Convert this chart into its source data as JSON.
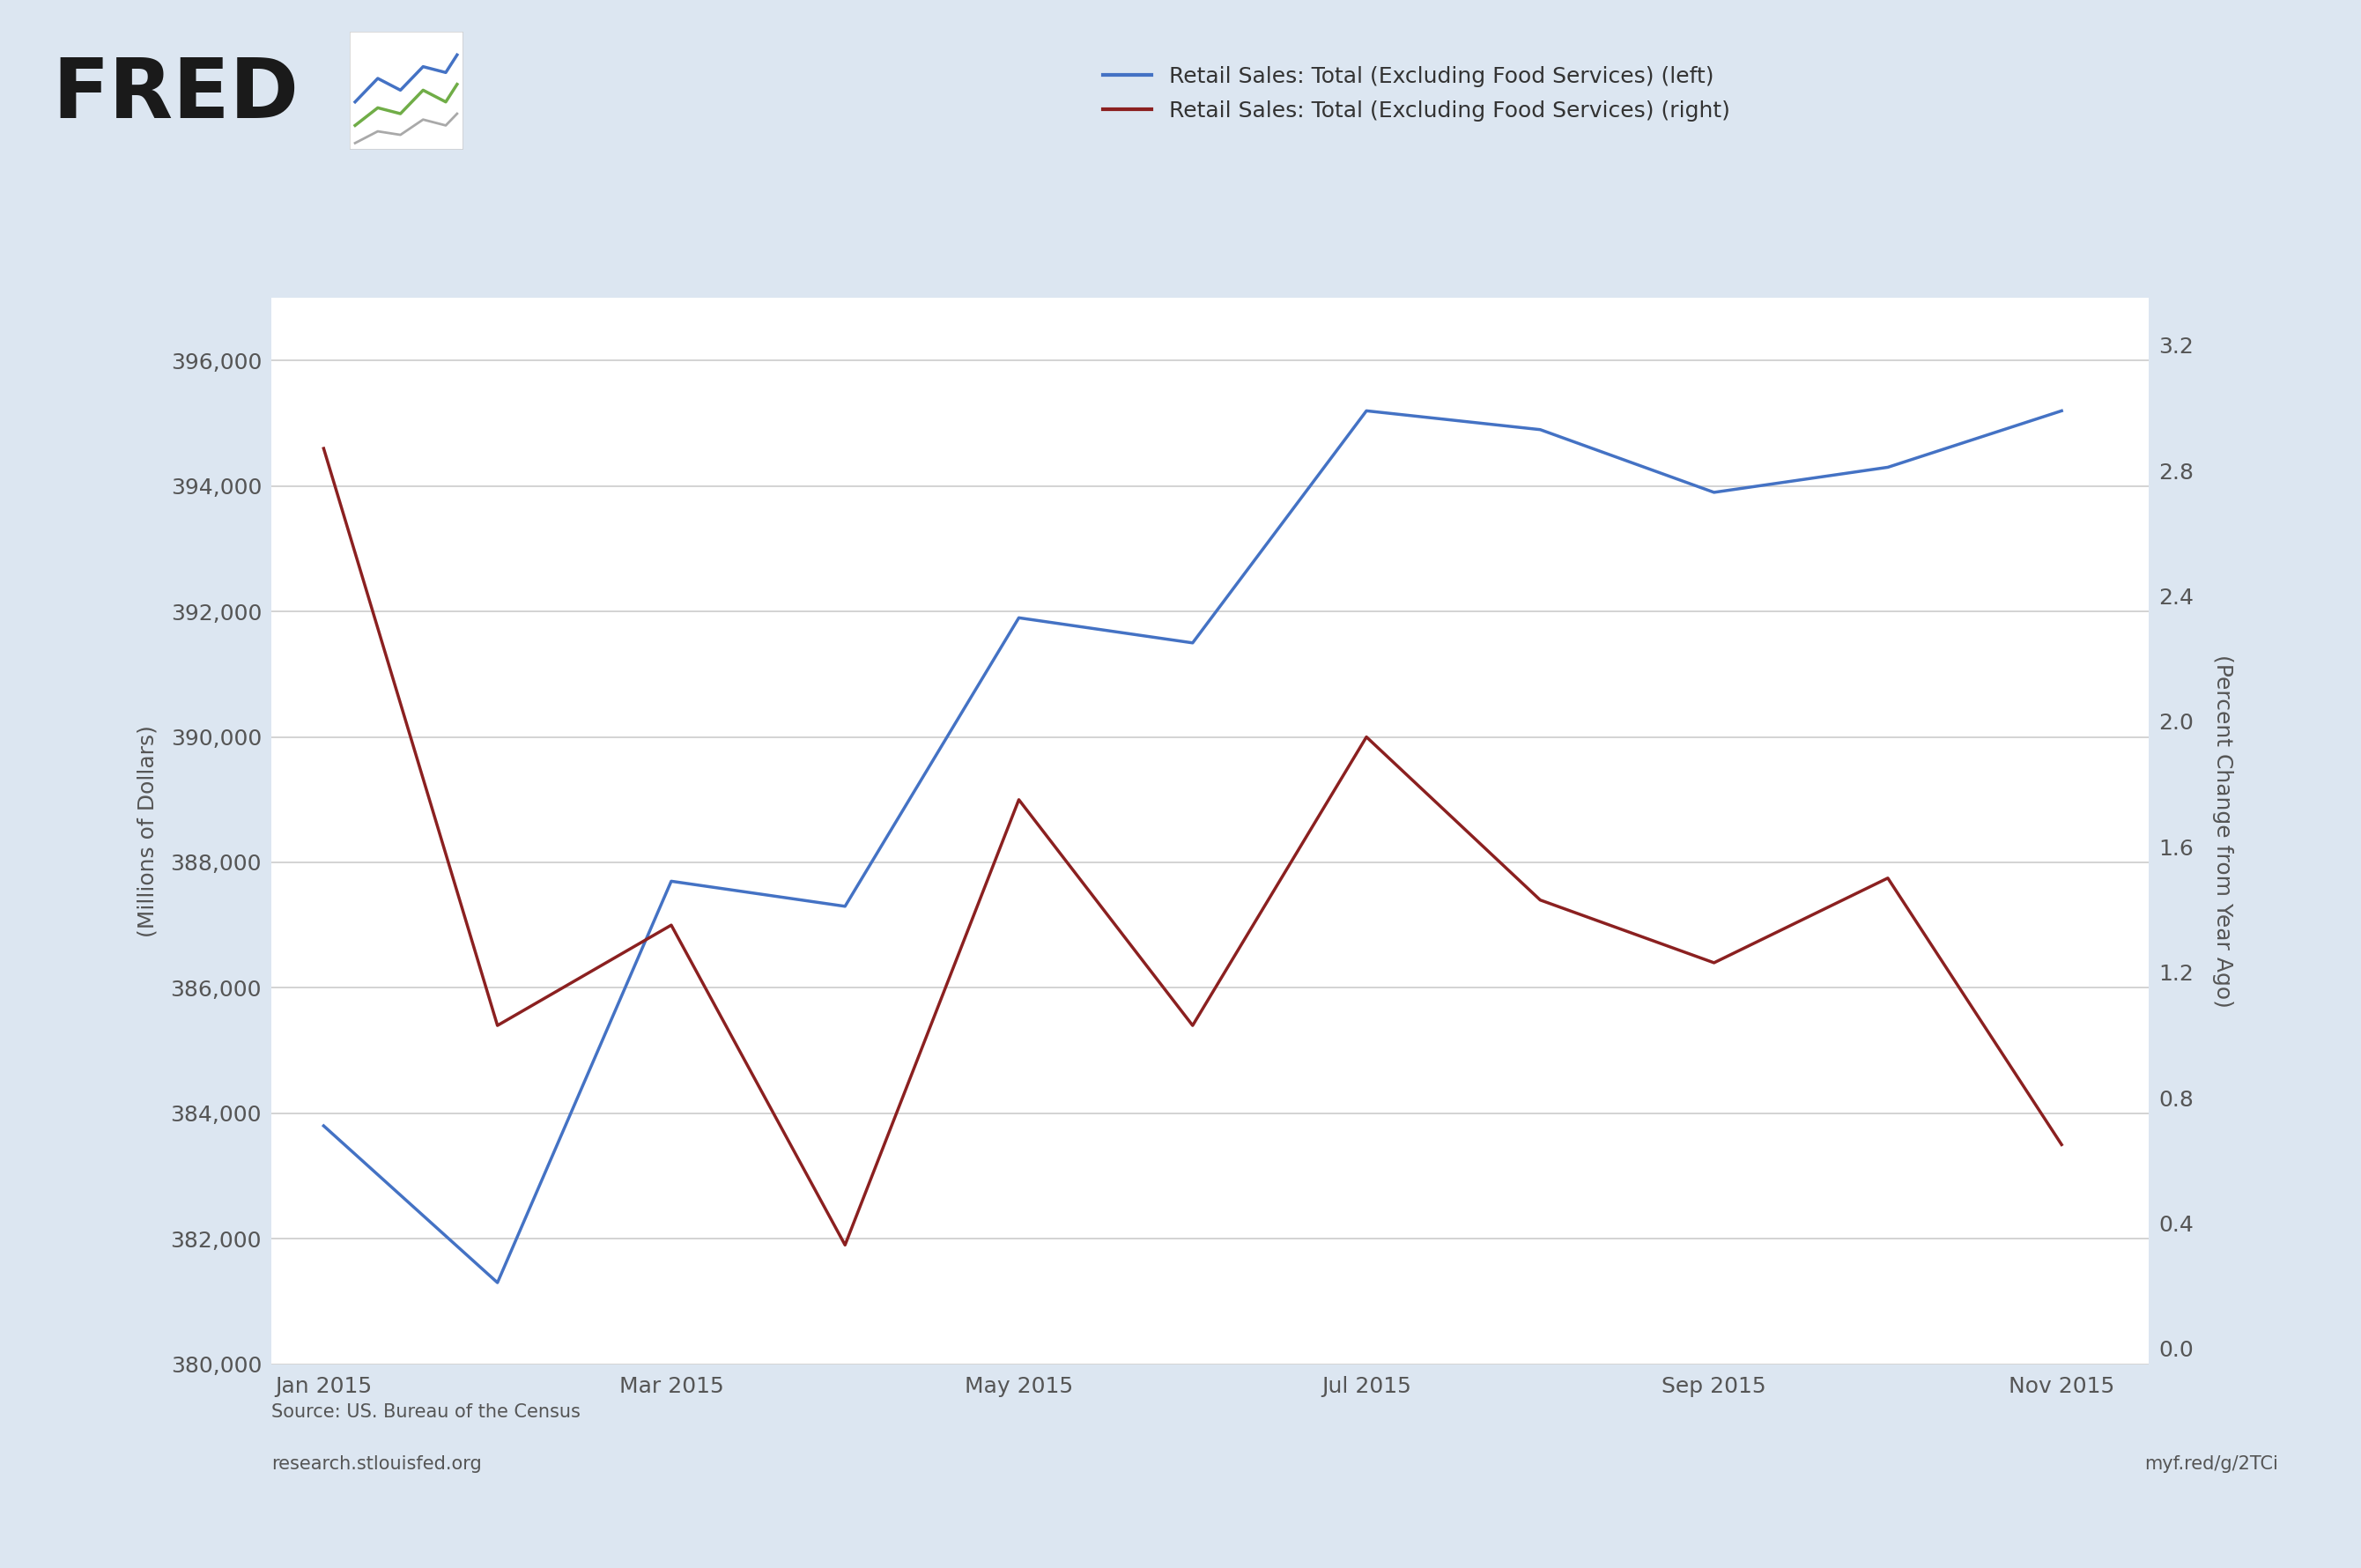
{
  "blue_x": [
    0,
    1,
    2,
    3,
    4,
    5,
    6,
    7,
    8,
    9,
    10
  ],
  "blue_y": [
    383800,
    381300,
    387700,
    387300,
    391900,
    391500,
    395200,
    394900,
    393900,
    394300,
    395200
  ],
  "red_x": [
    0,
    1,
    2,
    3,
    4,
    5,
    6,
    7,
    8,
    9,
    10
  ],
  "red_y": [
    2.87,
    1.03,
    1.35,
    0.33,
    1.75,
    1.03,
    1.95,
    1.43,
    1.23,
    1.5,
    0.65
  ],
  "x_tick_positions": [
    0,
    2,
    4,
    6,
    8,
    10
  ],
  "x_tick_labels": [
    "Jan 2015",
    "Mar 2015",
    "May 2015",
    "Jul 2015",
    "Sep 2015",
    "Nov 2015"
  ],
  "left_ylim": [
    380000,
    397000
  ],
  "right_ylim": [
    -0.05,
    3.35
  ],
  "left_yticks": [
    380000,
    382000,
    384000,
    386000,
    388000,
    390000,
    392000,
    394000,
    396000
  ],
  "right_yticks": [
    0.0,
    0.4,
    0.8,
    1.2,
    1.6,
    2.0,
    2.4,
    2.8,
    3.2
  ],
  "left_ylabel": "(Millions of Dollars)",
  "right_ylabel": "(Percent Change from Year Ago)",
  "blue_label": "Retail Sales: Total (Excluding Food Services) (left)",
  "red_label": "Retail Sales: Total (Excluding Food Services) (right)",
  "blue_color": "#4472C4",
  "red_color": "#8B2020",
  "background_color": "#dce6f1",
  "plot_bg_color": "#ffffff",
  "source_text": "Source: US. Bureau of the Census",
  "url_text": "research.stlouisfed.org",
  "right_url": "myf.red/g/2TCi",
  "fred_text": "FRED",
  "grid_color": "#cccccc",
  "tick_color": "#555555",
  "axis_label_fontsize": 18,
  "tick_fontsize": 18,
  "legend_fontsize": 18,
  "source_fontsize": 15
}
